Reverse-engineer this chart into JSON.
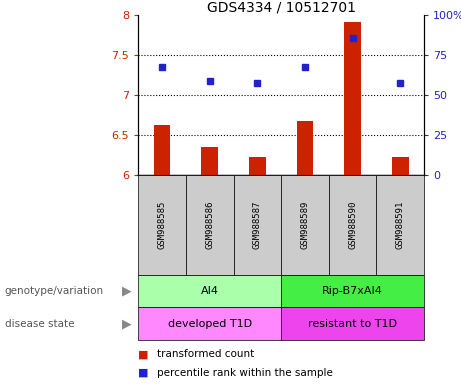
{
  "title": "GDS4334 / 10512701",
  "samples": [
    "GSM988585",
    "GSM988586",
    "GSM988587",
    "GSM988589",
    "GSM988590",
    "GSM988591"
  ],
  "bar_values": [
    6.63,
    6.35,
    6.22,
    6.67,
    7.92,
    6.22
  ],
  "scatter_values": [
    7.35,
    7.18,
    7.15,
    7.35,
    7.72,
    7.15
  ],
  "ylim_left": [
    6.0,
    8.0
  ],
  "ylim_right": [
    0,
    100
  ],
  "yticks_left": [
    6.0,
    6.5,
    7.0,
    7.5,
    8.0
  ],
  "yticks_right": [
    0,
    25,
    50,
    75,
    100
  ],
  "ytick_labels_left": [
    "6",
    "6.5",
    "7",
    "7.5",
    "8"
  ],
  "ytick_labels_right": [
    "0",
    "25",
    "50",
    "75",
    "100%"
  ],
  "dotted_lines": [
    6.5,
    7.0,
    7.5
  ],
  "bar_color": "#cc2200",
  "scatter_color": "#2222cc",
  "bar_width": 0.35,
  "genotype_groups": [
    {
      "label": "AI4",
      "start": 0,
      "end": 2,
      "color": "#aaffaa"
    },
    {
      "label": "Rip-B7xAI4",
      "start": 3,
      "end": 5,
      "color": "#44ee44"
    }
  ],
  "disease_groups": [
    {
      "label": "developed T1D",
      "start": 0,
      "end": 2,
      "color": "#ff88ff"
    },
    {
      "label": "resistant to T1D",
      "start": 3,
      "end": 5,
      "color": "#ee44ee"
    }
  ],
  "genotype_label": "genotype/variation",
  "disease_label": "disease state",
  "legend_items": [
    {
      "label": "transformed count",
      "color": "#cc2200"
    },
    {
      "label": "percentile rank within the sample",
      "color": "#2222cc"
    }
  ],
  "sample_label_color": "#cccccc",
  "background_color": "#ffffff"
}
